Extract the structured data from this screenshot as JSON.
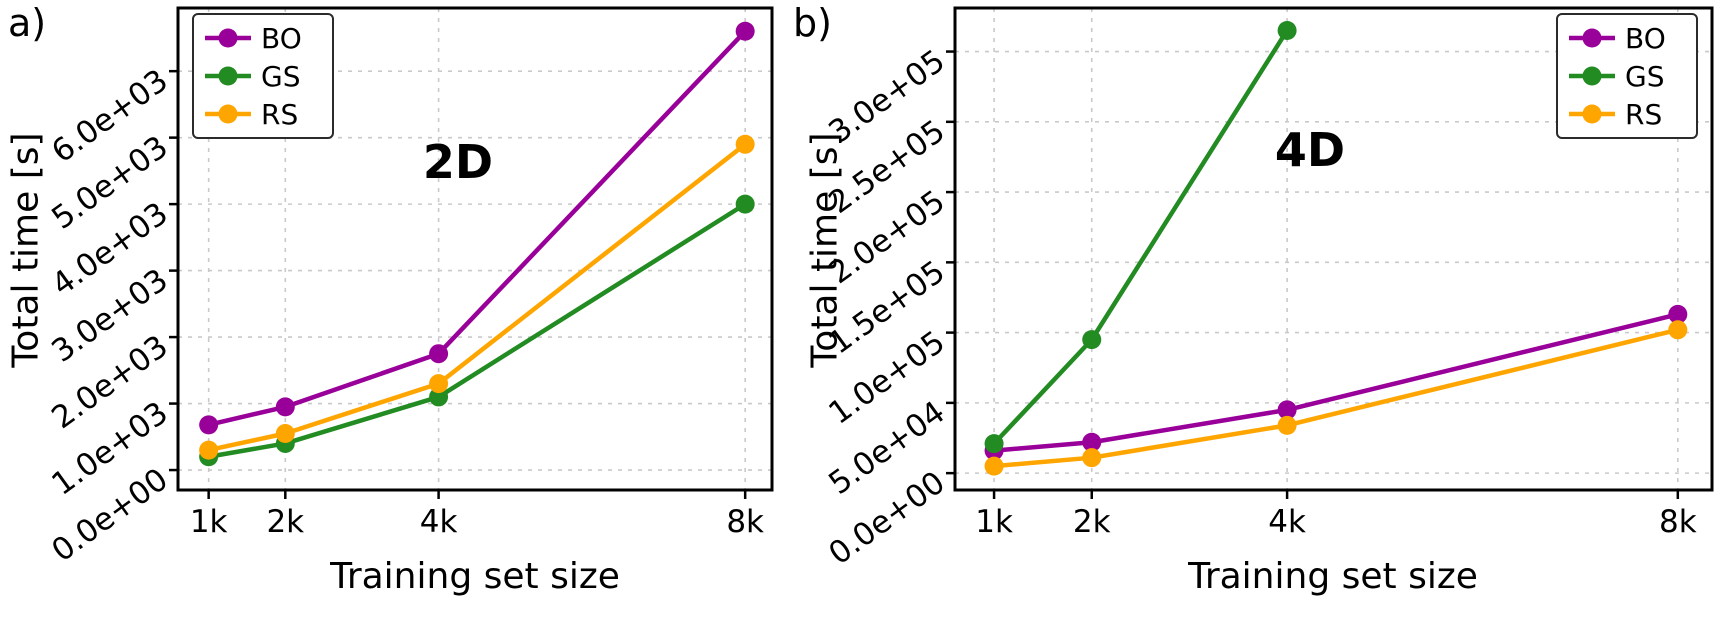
{
  "colors": {
    "bo_purple": "#990099",
    "gs_green": "#228B22",
    "rs_orange": "#FFA500",
    "grid": "#c9c9c9",
    "axis": "#000000"
  },
  "chart_data": [
    {
      "type": "line",
      "panel_label": "a)",
      "annotation": "2D",
      "xlabel": "Training set size",
      "ylabel": "Total time [s]",
      "categories": [
        "1k",
        "2k",
        "4k",
        "8k"
      ],
      "x_numeric": [
        1,
        2,
        4,
        8
      ],
      "xlim": [
        0.6,
        8.35
      ],
      "ylim": [
        -300,
        6950
      ],
      "yticks": [
        0,
        1000,
        2000,
        3000,
        4000,
        5000,
        6000
      ],
      "ytick_labels": [
        "0.0e+00",
        "1.0e+03",
        "2.0e+03",
        "3.0e+03",
        "4.0e+03",
        "5.0e+03",
        "6.0e+03"
      ],
      "grid": true,
      "legend_position": "top-left",
      "series": [
        {
          "name": "BO",
          "color": "#990099",
          "values": [
            680,
            950,
            1750,
            6600
          ]
        },
        {
          "name": "GS",
          "color": "#228B22",
          "values": [
            200,
            400,
            1100,
            4000
          ]
        },
        {
          "name": "RS",
          "color": "#FFA500",
          "values": [
            300,
            550,
            1300,
            4900
          ]
        }
      ]
    },
    {
      "type": "line",
      "panel_label": "b)",
      "annotation": "4D",
      "xlabel": "Training set size",
      "ylabel": "Total time [s]",
      "categories": [
        "1k",
        "2k",
        "4k",
        "8k"
      ],
      "x_numeric": [
        1,
        2,
        4,
        8
      ],
      "xlim": [
        0.6,
        8.35
      ],
      "ylim": [
        -12000,
        331000
      ],
      "yticks": [
        0,
        50000,
        100000,
        150000,
        200000,
        250000,
        300000
      ],
      "ytick_labels": [
        "0.0e+00",
        "5.0e+04",
        "1.0e+05",
        "1.5e+05",
        "2.0e+05",
        "2.5e+05",
        "3.0e+05"
      ],
      "grid": true,
      "legend_position": "top-right",
      "series": [
        {
          "name": "BO",
          "color": "#990099",
          "values": [
            16000,
            22000,
            45000,
            113000
          ]
        },
        {
          "name": "GS",
          "color": "#228B22",
          "values": [
            21000,
            95000,
            315000,
            null
          ]
        },
        {
          "name": "RS",
          "color": "#FFA500",
          "values": [
            5000,
            11000,
            34000,
            102000
          ]
        }
      ]
    }
  ]
}
